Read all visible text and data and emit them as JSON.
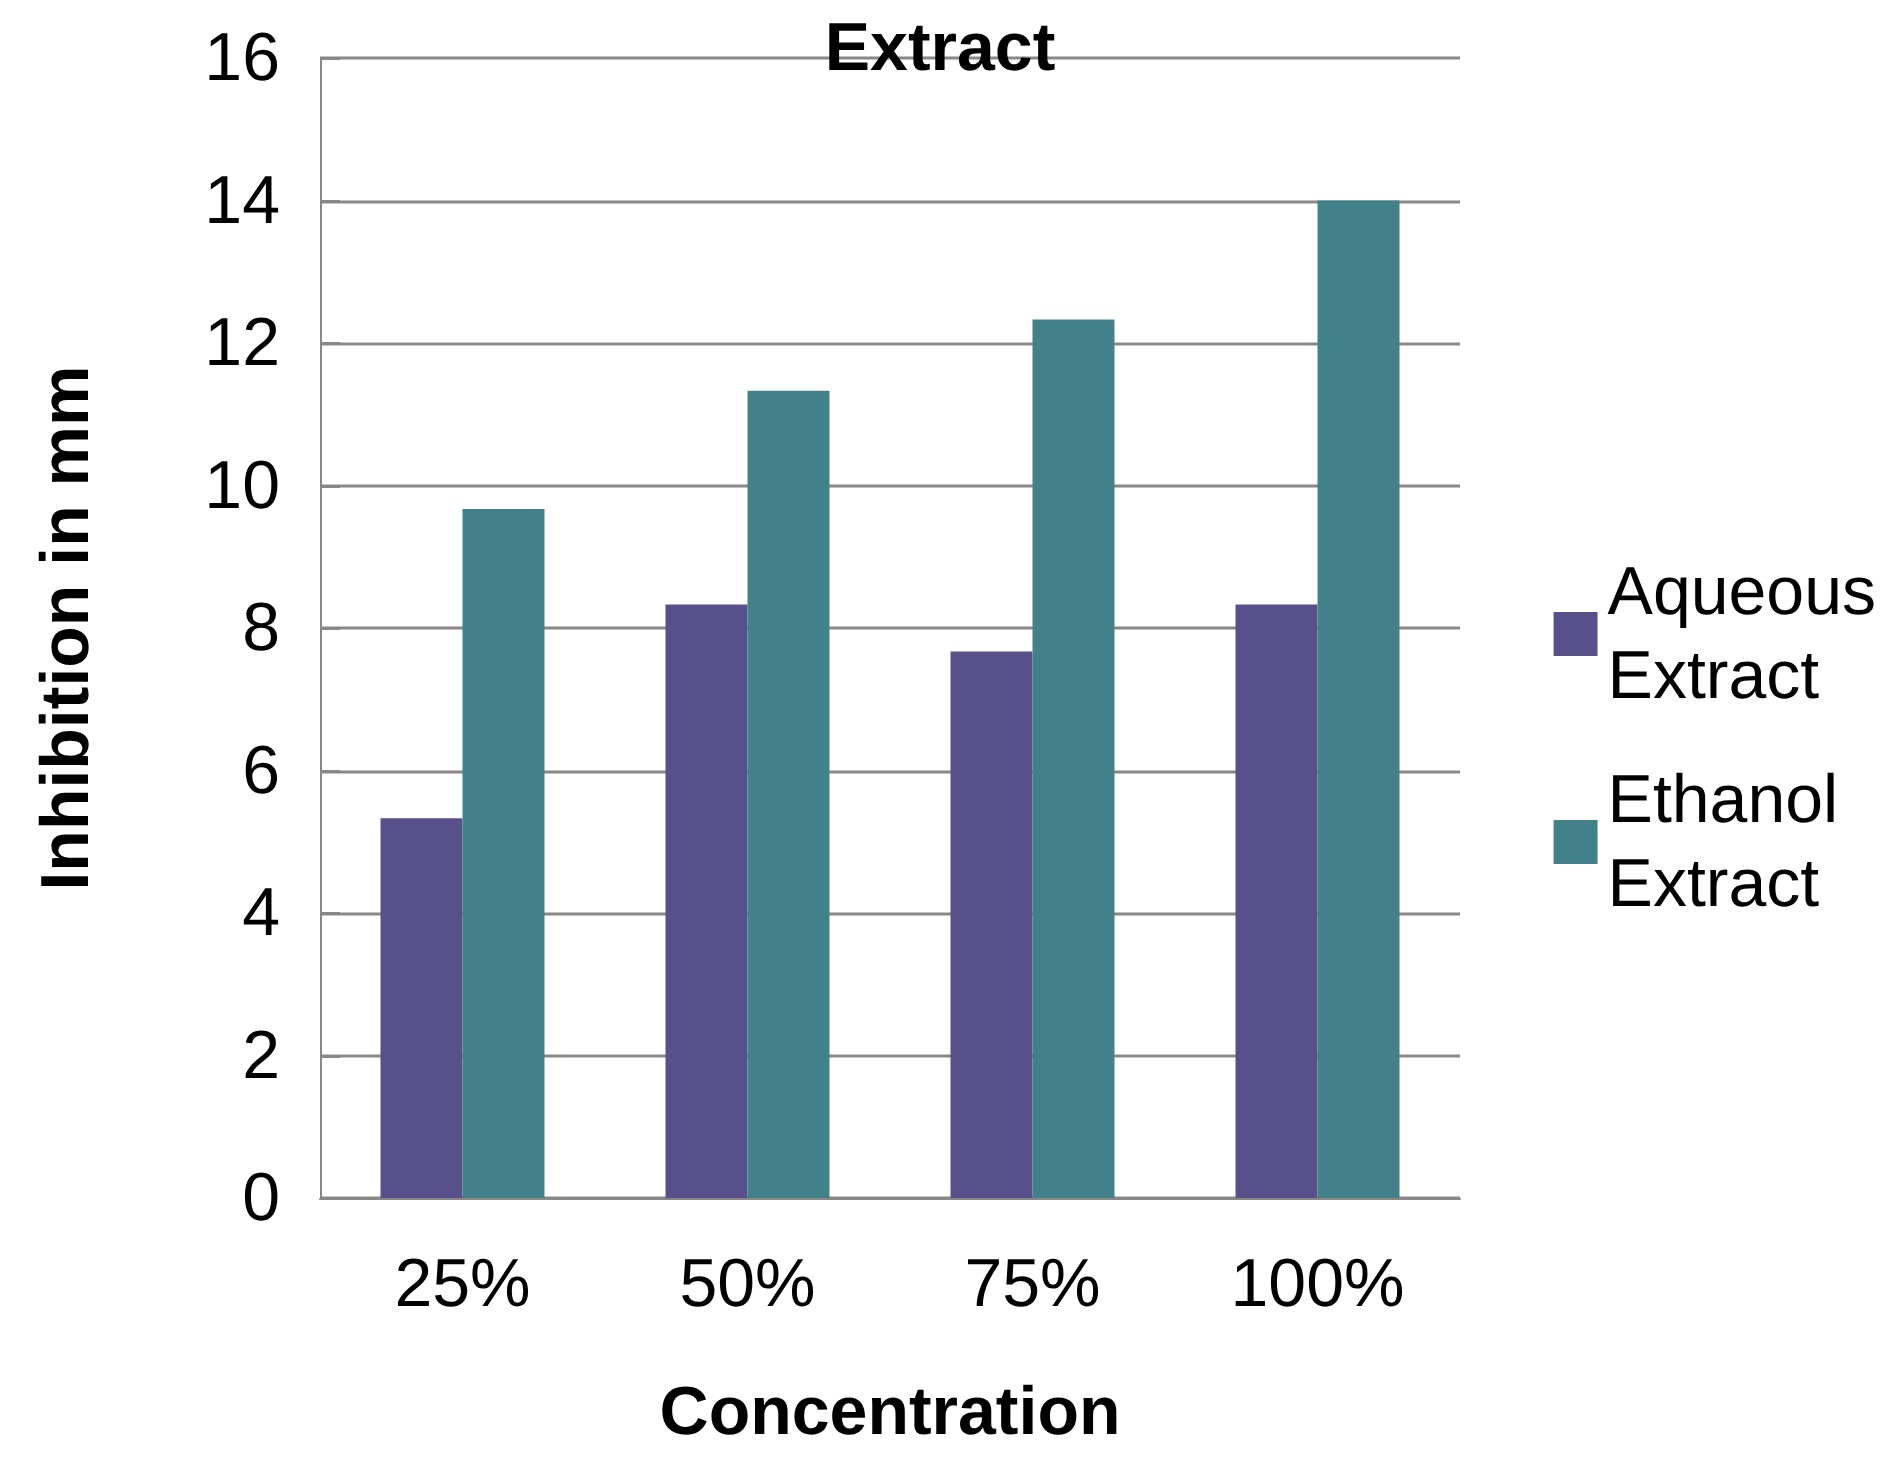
{
  "chart_data": {
    "type": "bar",
    "title": "Extract",
    "xlabel": "Concentration",
    "ylabel": "Inhibition in mm",
    "categories": [
      "25%",
      "50%",
      "75%",
      "100%"
    ],
    "series": [
      {
        "name": "Aqueous Extract",
        "color": "#58508a",
        "values": [
          5.33,
          8.33,
          7.67,
          8.33
        ]
      },
      {
        "name": "Ethanol Extract",
        "color": "#42818a",
        "values": [
          9.67,
          11.33,
          12.33,
          14
        ]
      }
    ],
    "ylim": [
      0,
      16
    ],
    "yticks": [
      0,
      2,
      4,
      6,
      8,
      10,
      12,
      14,
      16
    ],
    "grid": "y",
    "legend": "right"
  }
}
